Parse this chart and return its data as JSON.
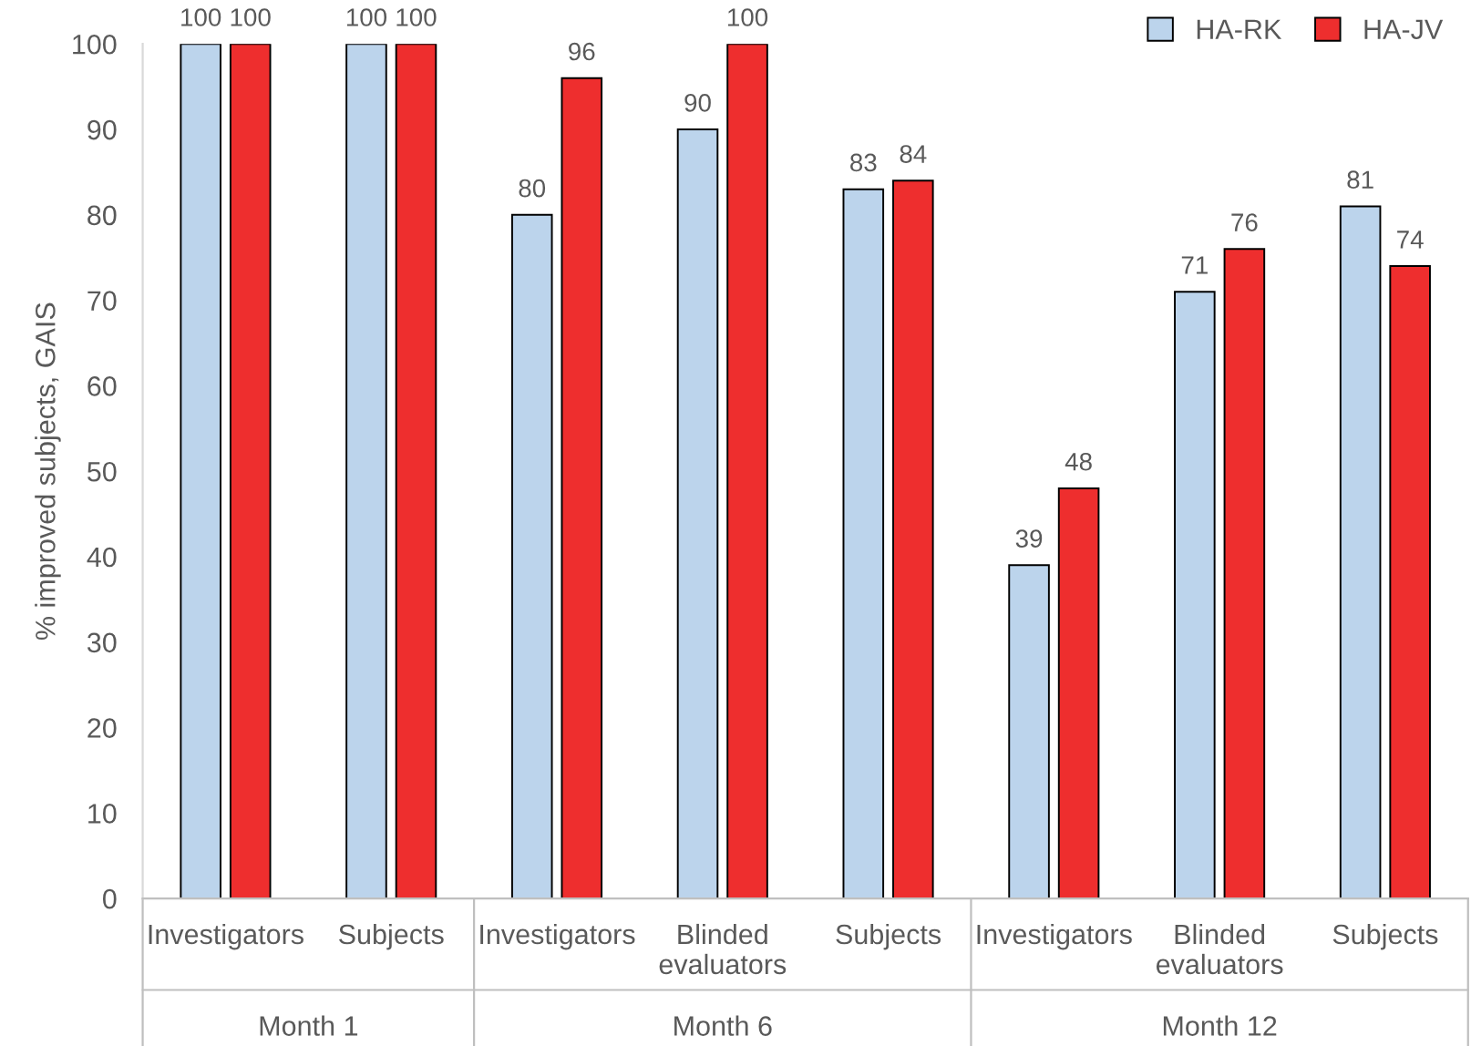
{
  "chart_data": {
    "type": "bar",
    "ylabel": "% improved subjects, GAIS",
    "categories": [
      "Investigators",
      "Subjects",
      "Investigators",
      "Blinded\nevaluators",
      "Subjects",
      "Investigators",
      "Blinded\nevaluators",
      "Subjects"
    ],
    "series": [
      {
        "name": "HA-RK",
        "color": "#bcd4ec",
        "values": [
          100,
          100,
          80,
          90,
          83,
          39,
          71,
          81
        ]
      },
      {
        "name": "HA-JV",
        "color": "#ee2e2e",
        "values": [
          100,
          100,
          96,
          100,
          84,
          48,
          76,
          74
        ]
      }
    ],
    "annotations": [
      "Month 1",
      "Month 6",
      "Month 12"
    ],
    "ylim": [
      0,
      100
    ],
    "yticks": [
      0,
      10,
      20,
      30,
      40,
      50,
      60,
      70,
      80,
      90,
      100
    ],
    "data_labels": true,
    "grid": false,
    "legend": "top right"
  }
}
